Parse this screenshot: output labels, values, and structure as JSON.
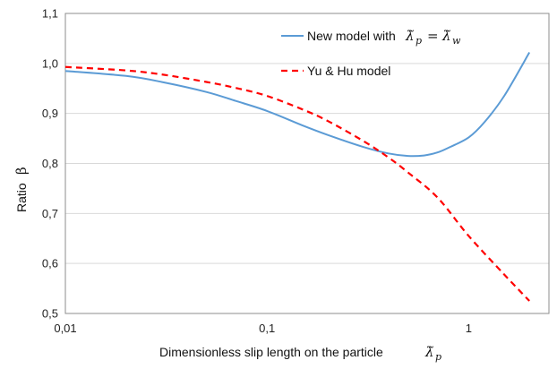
{
  "chart_data": {
    "type": "line",
    "xscale": "log",
    "xlim": [
      0.01,
      2.5
    ],
    "ylim": [
      0.5,
      1.1
    ],
    "x_ticks": [
      0.01,
      0.1,
      1
    ],
    "x_tick_labels": [
      "0,01",
      "0,1",
      "1"
    ],
    "y_ticks": [
      0.5,
      0.6,
      0.7,
      0.8,
      0.9,
      1.0,
      1.1
    ],
    "y_tick_labels": [
      "0,5",
      "0,6",
      "0,7",
      "0,8",
      "0,9",
      "1,0",
      "1,1"
    ],
    "grid": "horizontal",
    "legend_position": "top-right",
    "xlabel": "Dimensionless slip length on the particle",
    "xlabel_math": {
      "symbol": "λ̃",
      "sub": "p"
    },
    "ylabel": "Ratio",
    "ylabel_math": "β",
    "series": [
      {
        "name": "New model with",
        "name_math": {
          "lhs": "λ̃",
          "lhs_sub": "p",
          "op": "=",
          "rhs": "λ̃",
          "rhs_sub": "w"
        },
        "color": "#5b9bd5",
        "style": "solid",
        "x": [
          0.01,
          0.02,
          0.03,
          0.05,
          0.07,
          0.1,
          0.15,
          0.2,
          0.3,
          0.4,
          0.5,
          0.6,
          0.7,
          0.8,
          1.0,
          1.2,
          1.5,
          2.0
        ],
        "y": [
          0.985,
          0.975,
          0.963,
          0.943,
          0.925,
          0.905,
          0.876,
          0.857,
          0.833,
          0.82,
          0.815,
          0.816,
          0.822,
          0.832,
          0.852,
          0.883,
          0.935,
          1.022
        ]
      },
      {
        "name": "Yu & Hu model",
        "color": "#ff0000",
        "style": "dashed",
        "x": [
          0.01,
          0.02,
          0.03,
          0.05,
          0.07,
          0.1,
          0.15,
          0.2,
          0.3,
          0.4,
          0.5,
          0.7,
          1.0,
          1.5,
          2.0
        ],
        "y": [
          0.993,
          0.986,
          0.978,
          0.963,
          0.951,
          0.935,
          0.908,
          0.885,
          0.845,
          0.812,
          0.782,
          0.732,
          0.655,
          0.578,
          0.525
        ]
      }
    ]
  }
}
